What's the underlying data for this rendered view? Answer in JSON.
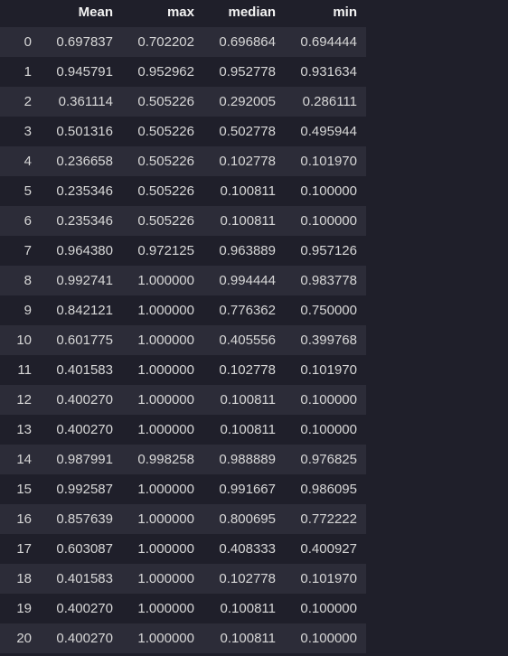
{
  "table": {
    "columns": [
      "",
      "Mean",
      "max",
      "median",
      "min"
    ],
    "rows": [
      [
        "0",
        "0.697837",
        "0.702202",
        "0.696864",
        "0.694444"
      ],
      [
        "1",
        "0.945791",
        "0.952962",
        "0.952778",
        "0.931634"
      ],
      [
        "2",
        "0.361114",
        "0.505226",
        "0.292005",
        "0.286111"
      ],
      [
        "3",
        "0.501316",
        "0.505226",
        "0.502778",
        "0.495944"
      ],
      [
        "4",
        "0.236658",
        "0.505226",
        "0.102778",
        "0.101970"
      ],
      [
        "5",
        "0.235346",
        "0.505226",
        "0.100811",
        "0.100000"
      ],
      [
        "6",
        "0.235346",
        "0.505226",
        "0.100811",
        "0.100000"
      ],
      [
        "7",
        "0.964380",
        "0.972125",
        "0.963889",
        "0.957126"
      ],
      [
        "8",
        "0.992741",
        "1.000000",
        "0.994444",
        "0.983778"
      ],
      [
        "9",
        "0.842121",
        "1.000000",
        "0.776362",
        "0.750000"
      ],
      [
        "10",
        "0.601775",
        "1.000000",
        "0.405556",
        "0.399768"
      ],
      [
        "11",
        "0.401583",
        "1.000000",
        "0.102778",
        "0.101970"
      ],
      [
        "12",
        "0.400270",
        "1.000000",
        "0.100811",
        "0.100000"
      ],
      [
        "13",
        "0.400270",
        "1.000000",
        "0.100811",
        "0.100000"
      ],
      [
        "14",
        "0.987991",
        "0.998258",
        "0.988889",
        "0.976825"
      ],
      [
        "15",
        "0.992587",
        "1.000000",
        "0.991667",
        "0.986095"
      ],
      [
        "16",
        "0.857639",
        "1.000000",
        "0.800695",
        "0.772222"
      ],
      [
        "17",
        "0.603087",
        "1.000000",
        "0.408333",
        "0.400927"
      ],
      [
        "18",
        "0.401583",
        "1.000000",
        "0.102778",
        "0.101970"
      ],
      [
        "19",
        "0.400270",
        "1.000000",
        "0.100811",
        "0.100000"
      ],
      [
        "20",
        "0.400270",
        "1.000000",
        "0.100811",
        "0.100000"
      ]
    ]
  }
}
